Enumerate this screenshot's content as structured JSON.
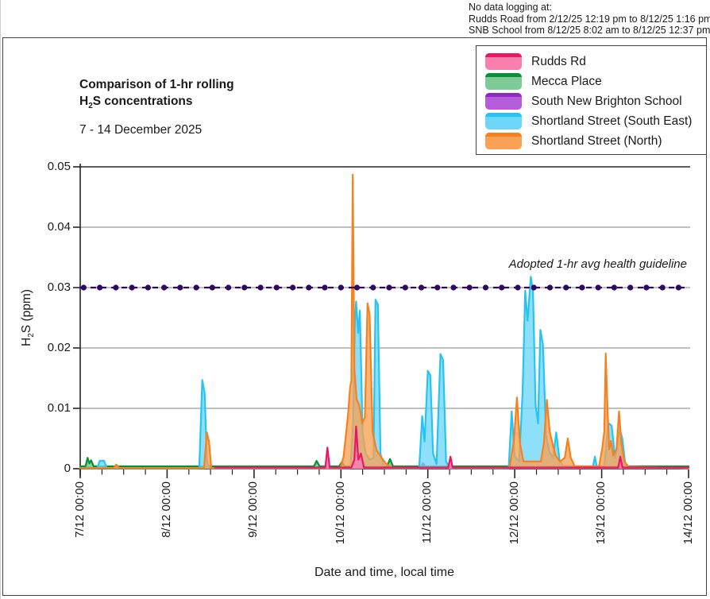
{
  "note": {
    "line1": "No data logging at:",
    "line2": "Rudds Road from 2/12/25 12:19 pm to 8/12/25 1:16 pm",
    "line3": "SNB School from 8/12/25 8:02 am to 8/12/25 12:37 pm"
  },
  "title": {
    "line1": "Comparison of 1-hr rolling",
    "formula": {
      "pre": "H",
      "sub": "2",
      "post": "S concentrations"
    },
    "subtitle": "7 - 14 December 2025"
  },
  "axes": {
    "y_label": {
      "pre": "H",
      "sub": "2",
      "post": "S (ppm)"
    },
    "x_label": "Date and time, local time"
  },
  "chart_data": {
    "type": "area",
    "title": "Comparison of 1-hr rolling H2S concentrations",
    "subtitle": "7 - 14 December 2025",
    "xlabel": "Date and time, local time",
    "ylabel": "H2S (ppm)",
    "x_unit": "days since 7/12/25 00:00 local",
    "xlim": [
      0,
      7
    ],
    "ylim": [
      0,
      0.05
    ],
    "grid": "horizontal",
    "legend_position": "top-right",
    "y_ticks": [
      {
        "v": 0,
        "label": "0"
      },
      {
        "v": 0.01,
        "label": "0.01"
      },
      {
        "v": 0.02,
        "label": "0.02"
      },
      {
        "v": 0.03,
        "label": "0.03"
      },
      {
        "v": 0.04,
        "label": "0.04"
      },
      {
        "v": 0.05,
        "label": "0.05"
      }
    ],
    "x_ticks": [
      {
        "t": 0,
        "label": "7/12 00:00"
      },
      {
        "t": 1,
        "label": "8/12 00:00"
      },
      {
        "t": 2,
        "label": "9/12 00:00"
      },
      {
        "t": 3,
        "label": "10/12 00:00"
      },
      {
        "t": 4,
        "label": "11/12 00:00"
      },
      {
        "t": 5,
        "label": "12/12 00:00"
      },
      {
        "t": 6,
        "label": "13/12 00:00"
      },
      {
        "t": 7,
        "label": "14/12 00:00"
      }
    ],
    "minor_tick_step_days": 0.25,
    "guideline": {
      "value": 0.03,
      "label": "Adopted 1-hr avg health guideline",
      "color": "#2D0A5E",
      "style": "dashed-with-dots",
      "marker_step_days": 0.185
    },
    "series": [
      {
        "key": "rudds",
        "name": "Rudds Rd",
        "line": "#EA1860",
        "fill": "#F97FAF",
        "fill_opacity": 0.9,
        "draw_rank": 5,
        "segments": [
          [
            [
              1.553,
              0.0002
            ],
            [
              2.82,
              0.0002
            ],
            [
              2.845,
              0.0035
            ],
            [
              2.87,
              0.0002
            ],
            [
              3.12,
              0.0002
            ],
            [
              3.155,
              0.0015
            ],
            [
              3.175,
              0.007
            ],
            [
              3.2,
              0.0015
            ],
            [
              3.23,
              0.0025
            ],
            [
              3.265,
              0.0002
            ],
            [
              4.235,
              0.0002
            ],
            [
              4.26,
              0.002
            ],
            [
              4.285,
              0.0002
            ],
            [
              6.19,
              0.0002
            ],
            [
              6.215,
              0.002
            ],
            [
              6.24,
              0.0002
            ],
            [
              7,
              0.0002
            ]
          ]
        ]
      },
      {
        "key": "mecca",
        "name": "Mecca Place",
        "line": "#0B9038",
        "fill": "#7ECB97",
        "fill_opacity": 0.95,
        "draw_rank": 2,
        "segments": [
          [
            [
              0,
              0.0004
            ],
            [
              0.06,
              0.0004
            ],
            [
              0.085,
              0.0018
            ],
            [
              0.105,
              0.0009
            ],
            [
              0.125,
              0.0014
            ],
            [
              0.155,
              0.0004
            ],
            [
              2.69,
              0.0004
            ],
            [
              2.72,
              0.0013
            ],
            [
              2.755,
              0.0004
            ],
            [
              2.98,
              0.0004
            ],
            [
              3.01,
              0.0011
            ],
            [
              3.045,
              0.0004
            ],
            [
              3.53,
              0.0004
            ],
            [
              3.565,
              0.0016
            ],
            [
              3.6,
              0.0004
            ],
            [
              7,
              0.0004
            ]
          ]
        ]
      },
      {
        "key": "snbs",
        "name": "South New Brighton School",
        "line": "#8F28BE",
        "fill": "#B45CD9",
        "fill_opacity": 0.95,
        "draw_rank": 1,
        "segments": [
          [
            [
              0,
              0.0002
            ],
            [
              1.334,
              0.0002
            ]
          ],
          [
            [
              1.526,
              0.0002
            ],
            [
              3.91,
              0.0002
            ],
            [
              3.945,
              0.0009
            ],
            [
              3.98,
              0.0002
            ],
            [
              6.225,
              0.0002
            ],
            [
              6.26,
              0.0011
            ],
            [
              6.295,
              0.0002
            ],
            [
              7,
              0.0002
            ]
          ]
        ]
      },
      {
        "key": "shortland_se",
        "name": "Shortland Street (South East)",
        "line": "#27C3F2",
        "fill": "#6ED7F8",
        "fill_opacity": 0.78,
        "draw_rank": 3,
        "segments": [
          [
            [
              0,
              0.0001
            ],
            [
              0.195,
              0.0001
            ],
            [
              0.225,
              0.0013
            ],
            [
              0.275,
              0.0013
            ],
            [
              0.305,
              0.0001
            ],
            [
              1.37,
              0.0001
            ],
            [
              1.405,
              0.0147
            ],
            [
              1.432,
              0.0125
            ],
            [
              1.458,
              0.0012
            ],
            [
              1.49,
              0.0001
            ],
            [
              3.11,
              0.0001
            ],
            [
              3.14,
              0.008
            ],
            [
              3.158,
              0.0235
            ],
            [
              3.175,
              0.0277
            ],
            [
              3.198,
              0.0225
            ],
            [
              3.218,
              0.0262
            ],
            [
              3.25,
              0.006
            ],
            [
              3.285,
              0.0025
            ],
            [
              3.33,
              0.0015
            ],
            [
              3.375,
              0.0018
            ],
            [
              3.398,
              0.028
            ],
            [
              3.425,
              0.0272
            ],
            [
              3.455,
              0.0025
            ],
            [
              3.5,
              0.0001
            ],
            [
              3.9,
              0.0001
            ],
            [
              3.935,
              0.0087
            ],
            [
              3.962,
              0.0045
            ],
            [
              4.0,
              0.0162
            ],
            [
              4.028,
              0.0155
            ],
            [
              4.06,
              0.0025
            ],
            [
              4.1,
              0.0008
            ],
            [
              4.145,
              0.019
            ],
            [
              4.175,
              0.018
            ],
            [
              4.21,
              0.0012
            ],
            [
              4.25,
              0.0001
            ],
            [
              4.93,
              0.0001
            ],
            [
              4.965,
              0.0095
            ],
            [
              5.0,
              0.002
            ],
            [
              5.05,
              0.0012
            ],
            [
              5.09,
              0.0125
            ],
            [
              5.12,
              0.0295
            ],
            [
              5.148,
              0.0245
            ],
            [
              5.185,
              0.0318
            ],
            [
              5.21,
              0.0295
            ],
            [
              5.24,
              0.0105
            ],
            [
              5.268,
              0.0075
            ],
            [
              5.295,
              0.023
            ],
            [
              5.325,
              0.0205
            ],
            [
              5.36,
              0.0055
            ],
            [
              5.4,
              0.0028
            ],
            [
              5.44,
              0.0018
            ],
            [
              5.478,
              0.006
            ],
            [
              5.515,
              0.0015
            ],
            [
              5.56,
              0.0003
            ],
            [
              5.9,
              0.0003
            ],
            [
              5.922,
              0.002
            ],
            [
              5.945,
              0.0003
            ],
            [
              6.03,
              0.0003
            ],
            [
              6.075,
              0.0076
            ],
            [
              6.115,
              0.0071
            ],
            [
              6.155,
              0.0018
            ],
            [
              6.208,
              0.0066
            ],
            [
              6.238,
              0.005
            ],
            [
              6.275,
              0.0003
            ],
            [
              7,
              0.0001
            ]
          ]
        ]
      },
      {
        "key": "shortland_n",
        "name": "Shortland Street (North)",
        "line": "#F58220",
        "fill": "#F9A255",
        "fill_opacity": 0.78,
        "draw_rank": 4,
        "segments": [
          [
            [
              0,
              0.0001
            ],
            [
              0.385,
              0.0001
            ],
            [
              0.415,
              0.0007
            ],
            [
              0.45,
              0.0001
            ],
            [
              1.425,
              0.0001
            ],
            [
              1.458,
              0.006
            ],
            [
              1.482,
              0.0045
            ],
            [
              1.508,
              0.0001
            ],
            [
              2.995,
              0.0001
            ],
            [
              3.03,
              0.002
            ],
            [
              3.06,
              0.006
            ],
            [
              3.085,
              0.0095
            ],
            [
              3.105,
              0.0135
            ],
            [
              3.12,
              0.0145
            ],
            [
              3.136,
              0.0487
            ],
            [
              3.155,
              0.0165
            ],
            [
              3.18,
              0.0115
            ],
            [
              3.21,
              0.0105
            ],
            [
              3.245,
              0.0075
            ],
            [
              3.275,
              0.0085
            ],
            [
              3.306,
              0.0274
            ],
            [
              3.33,
              0.0255
            ],
            [
              3.365,
              0.006
            ],
            [
              3.41,
              0.003
            ],
            [
              3.46,
              0.002
            ],
            [
              3.52,
              0.0008
            ],
            [
              3.58,
              0.0002
            ],
            [
              4.94,
              0.0002
            ],
            [
              4.99,
              0.0045
            ],
            [
              5.025,
              0.0118
            ],
            [
              5.06,
              0.0042
            ],
            [
              5.1,
              0.0012
            ],
            [
              5.3,
              0.0012
            ],
            [
              5.335,
              0.0042
            ],
            [
              5.37,
              0.0114
            ],
            [
              5.402,
              0.0062
            ],
            [
              5.435,
              0.0042
            ],
            [
              5.47,
              0.0022
            ],
            [
              5.52,
              0.0012
            ],
            [
              5.575,
              0.0018
            ],
            [
              5.61,
              0.005
            ],
            [
              5.645,
              0.0018
            ],
            [
              5.69,
              0.0004
            ],
            [
              5.97,
              0.0004
            ],
            [
              6.005,
              0.0032
            ],
            [
              6.03,
              0.0062
            ],
            [
              6.047,
              0.0191
            ],
            [
              6.067,
              0.0102
            ],
            [
              6.087,
              0.0032
            ],
            [
              6.107,
              0.0046
            ],
            [
              6.135,
              0.0022
            ],
            [
              6.17,
              0.0032
            ],
            [
              6.2,
              0.0095
            ],
            [
              6.227,
              0.0042
            ],
            [
              6.262,
              0.0012
            ],
            [
              6.31,
              0.0003
            ],
            [
              7,
              0.0001
            ]
          ]
        ]
      }
    ]
  }
}
